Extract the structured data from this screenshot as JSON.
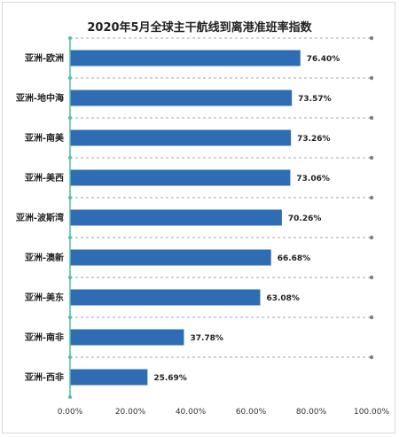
{
  "chart_data": {
    "type": "bar",
    "orientation": "horizontal",
    "title": "2020年5月全球主干航线到离港准班率指数",
    "categories": [
      "亚洲-欧洲",
      "亚洲-地中海",
      "亚洲-南美",
      "亚洲-美西",
      "亚洲-波斯湾",
      "亚洲-澳新",
      "亚洲-美东",
      "亚洲-南非",
      "亚洲-西非"
    ],
    "values": [
      76.4,
      73.57,
      73.26,
      73.06,
      70.26,
      66.68,
      63.08,
      37.78,
      25.69
    ],
    "value_labels": [
      "76.40%",
      "73.57%",
      "73.26%",
      "73.06%",
      "70.26%",
      "66.68%",
      "63.08%",
      "37.78%",
      "25.69%"
    ],
    "x_ticks": [
      "0.00%",
      "20.00%",
      "40.00%",
      "60.00%",
      "80.00%",
      "100.00%"
    ],
    "xlim": [
      0,
      100
    ],
    "xlabel": "",
    "ylabel": "",
    "grid": "dashed-horizontal",
    "legend": "none",
    "colors": {
      "bar": "#2e6db4",
      "axis": "#4fc1a6",
      "grid": "#a6a6a6",
      "grid_marker": "#7f7f7f"
    }
  }
}
